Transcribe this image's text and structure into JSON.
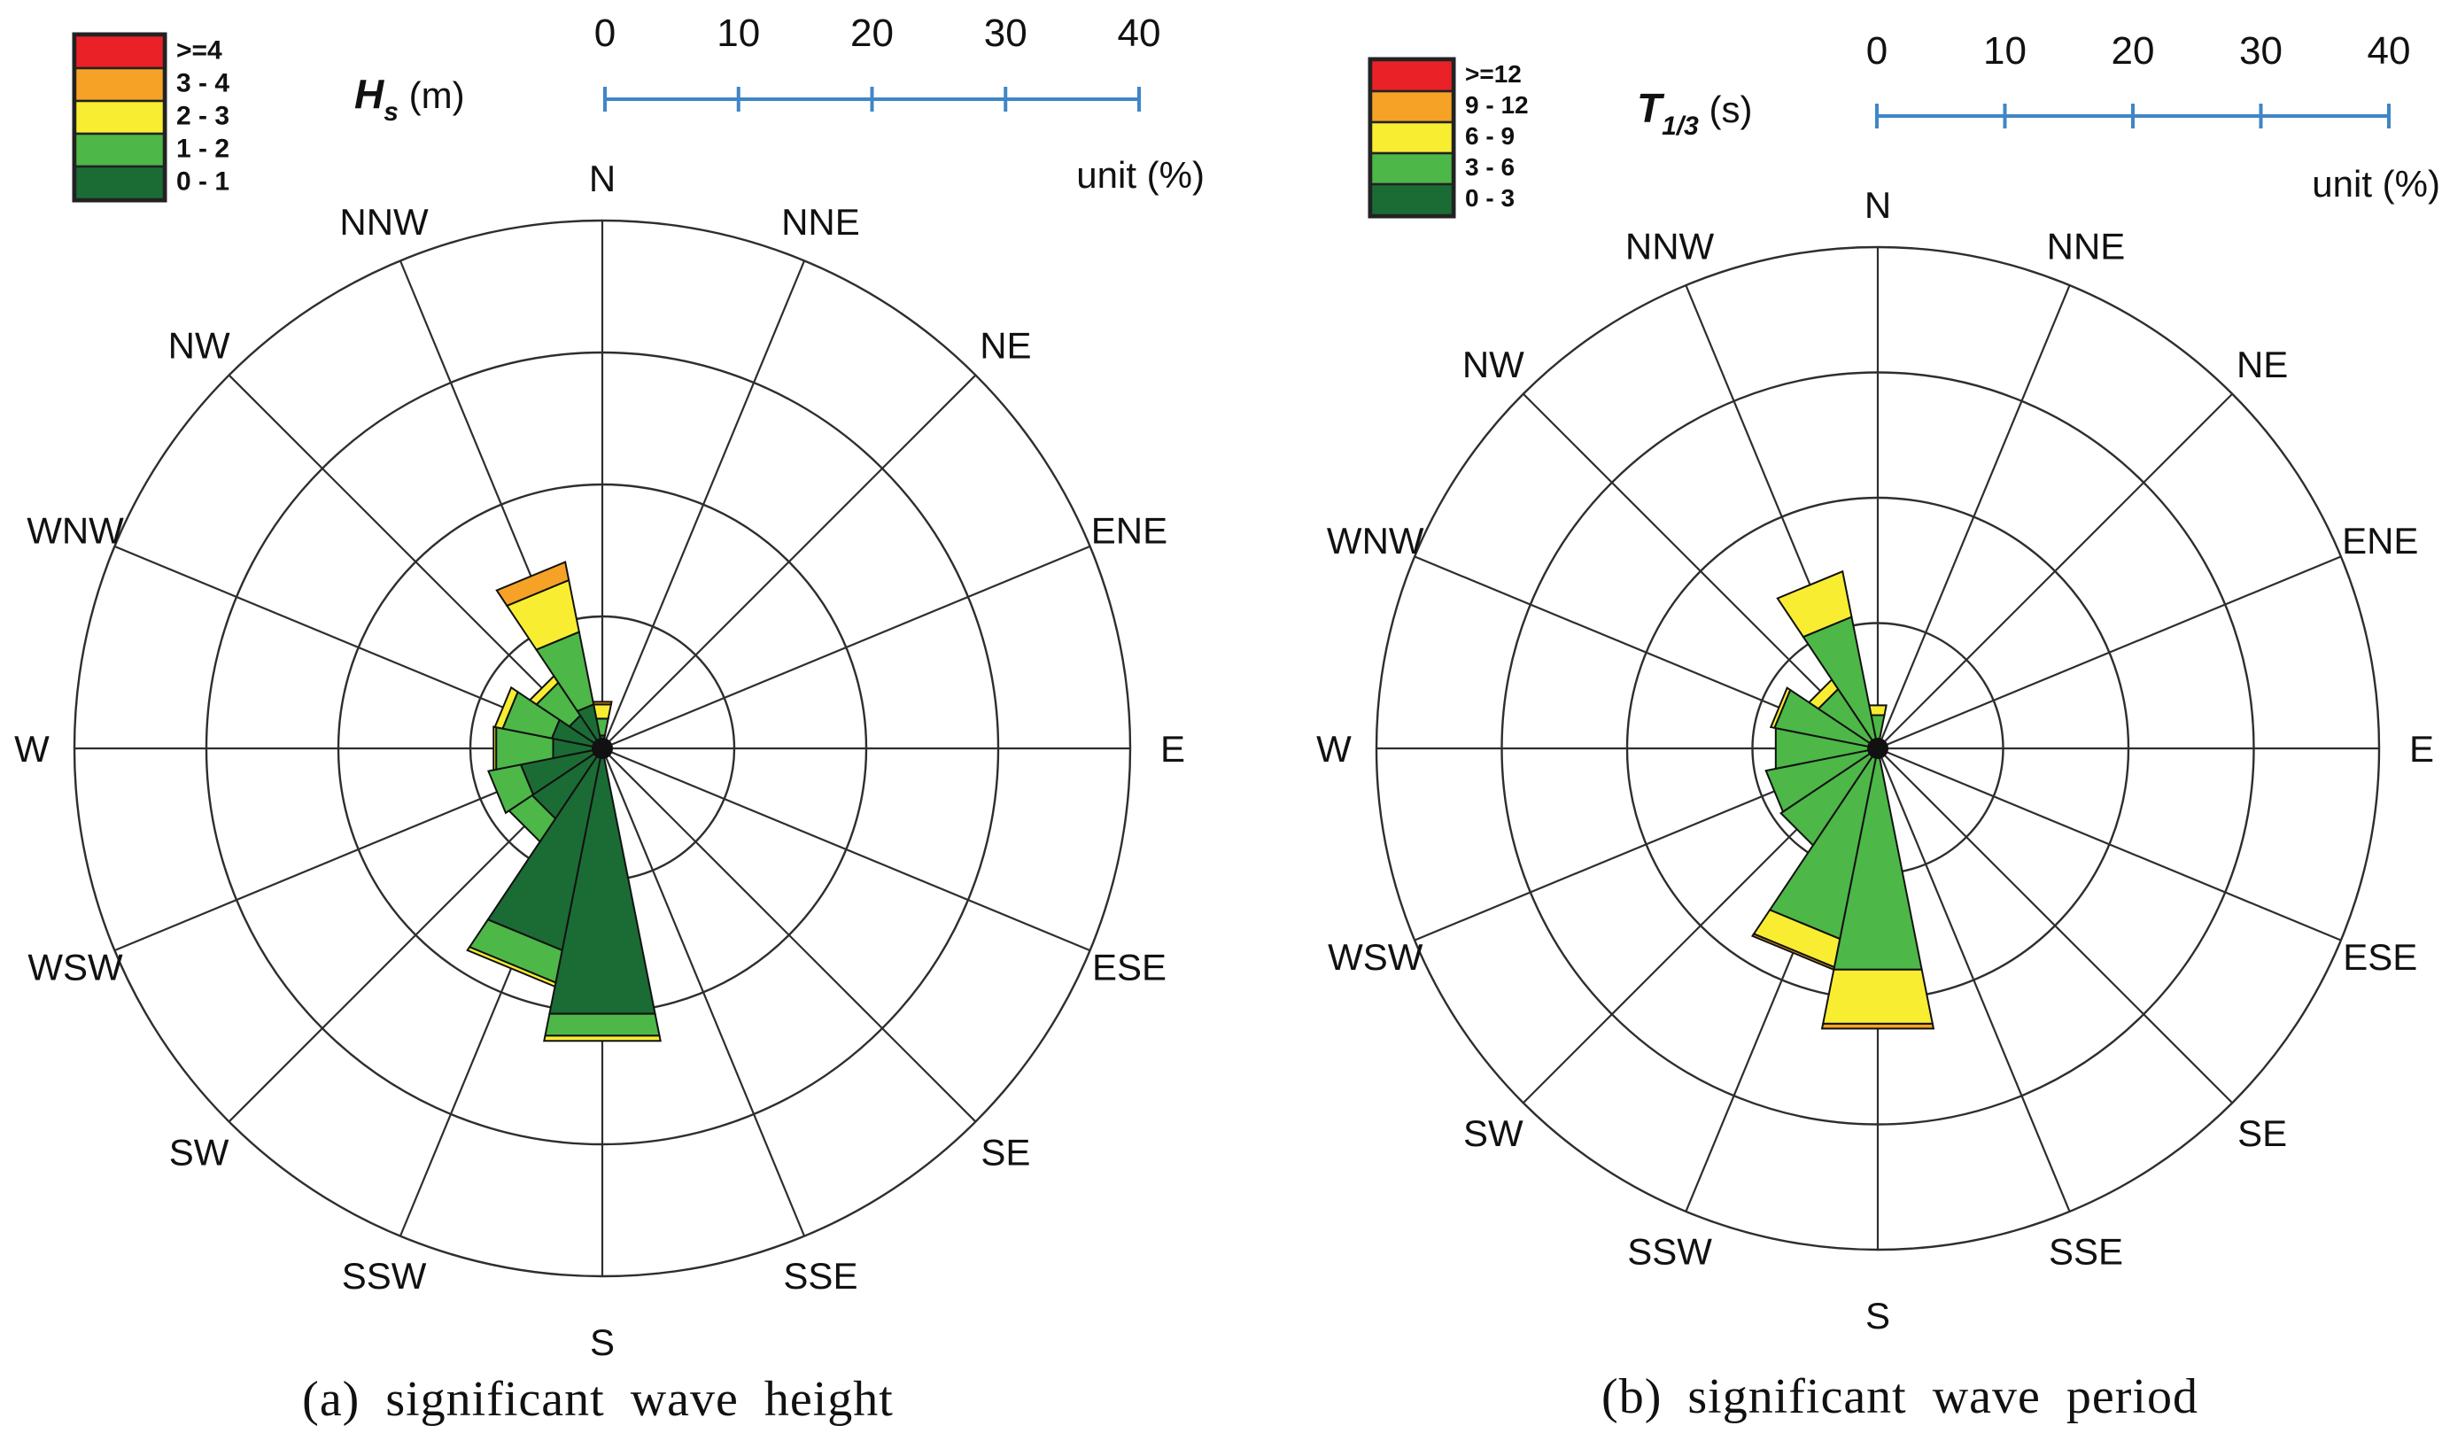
{
  "figure_name": "wave rose figure",
  "chart_data": [
    {
      "type": "windrose",
      "panel": "a",
      "caption": "(a) significant wave height",
      "title": {
        "symbol": "H",
        "subscript": "s",
        "unit": "(m)"
      },
      "scale": {
        "ticks": [
          0,
          10,
          20,
          30,
          40
        ],
        "max": 40,
        "unit_label": "unit (%)"
      },
      "grid": {
        "rings": 4,
        "ring_step_percent": 10
      },
      "directions": [
        "N",
        "NNE",
        "NE",
        "ENE",
        "E",
        "ESE",
        "SE",
        "SSE",
        "S",
        "SSW",
        "SW",
        "WSW",
        "W",
        "WNW",
        "NW",
        "NNW"
      ],
      "series": [
        {
          "label": "0 - 1",
          "color": "#1B6B35",
          "values": [
            1.0,
            0,
            0,
            0,
            0,
            0,
            0,
            0,
            20.5,
            15.6,
            6.4,
            6.3,
            3.8,
            3.9,
            3.0,
            3.4
          ]
        },
        {
          "label": "1 - 2",
          "color": "#4DB748",
          "values": [
            1.3,
            0,
            0,
            0,
            0,
            0,
            0,
            0,
            1.7,
            2.5,
            2.1,
            2.5,
            4.4,
            3.8,
            3.0,
            5.6
          ]
        },
        {
          "label": "2 - 3",
          "color": "#F9ED32",
          "values": [
            1.1,
            0,
            0,
            0,
            0,
            0,
            0,
            0,
            0.4,
            0.3,
            0,
            0,
            0.2,
            0.6,
            0.6,
            4.0
          ]
        },
        {
          "label": "3 - 4",
          "color": "#F5A226",
          "values": [
            0.2,
            0,
            0,
            0,
            0,
            0,
            0,
            0,
            0,
            0,
            0,
            0,
            0,
            0,
            0,
            1.4
          ]
        },
        {
          "label": ">=4",
          "color": "#EA2127",
          "values": [
            0,
            0,
            0,
            0,
            0,
            0,
            0,
            0,
            0,
            0,
            0,
            0,
            0,
            0,
            0,
            0
          ]
        }
      ]
    },
    {
      "type": "windrose",
      "panel": "b",
      "caption": "(b) significant wave period",
      "title": {
        "symbol": "T",
        "subscript": "1/3",
        "unit": "(s)"
      },
      "scale": {
        "ticks": [
          0,
          10,
          20,
          30,
          40
        ],
        "max": 40,
        "unit_label": "unit (%)"
      },
      "grid": {
        "rings": 4,
        "ring_step_percent": 10
      },
      "directions": [
        "N",
        "NNE",
        "NE",
        "ENE",
        "E",
        "ESE",
        "SE",
        "SSE",
        "S",
        "SSW",
        "SW",
        "WSW",
        "W",
        "WNW",
        "NW",
        "NNW"
      ],
      "series": [
        {
          "label": "0 - 3",
          "color": "#1B6B35",
          "values": [
            0.2,
            0,
            0,
            0,
            0,
            0,
            0,
            0,
            0.3,
            0.2,
            0.2,
            0.2,
            0.2,
            0.2,
            0.2,
            0.2
          ]
        },
        {
          "label": "3 - 6",
          "color": "#4DB748",
          "values": [
            2.5,
            0,
            0,
            0,
            0,
            0,
            0,
            0,
            17.7,
            15.3,
            9.1,
            8.9,
            8.1,
            8.2,
            5.5,
            10.5
          ]
        },
        {
          "label": "6 - 9",
          "color": "#F9ED32",
          "values": [
            0.8,
            0,
            0,
            0,
            0,
            0,
            0,
            0,
            4.4,
            2.3,
            0,
            0,
            0,
            0.3,
            0.9,
            3.7
          ]
        },
        {
          "label": "9 - 12",
          "color": "#F5A226",
          "values": [
            0,
            0,
            0,
            0,
            0,
            0,
            0,
            0,
            0.4,
            0.2,
            0,
            0,
            0,
            0,
            0,
            0
          ]
        },
        {
          "label": ">=12",
          "color": "#EA2127",
          "values": [
            0,
            0,
            0,
            0,
            0,
            0,
            0,
            0,
            0,
            0,
            0,
            0,
            0,
            0,
            0,
            0
          ]
        }
      ]
    }
  ],
  "colors": {
    "grid": "#2e2e2e",
    "petal_outline": "#111111",
    "scalebar_blue": "#3F86C6",
    "text": "#111111"
  }
}
